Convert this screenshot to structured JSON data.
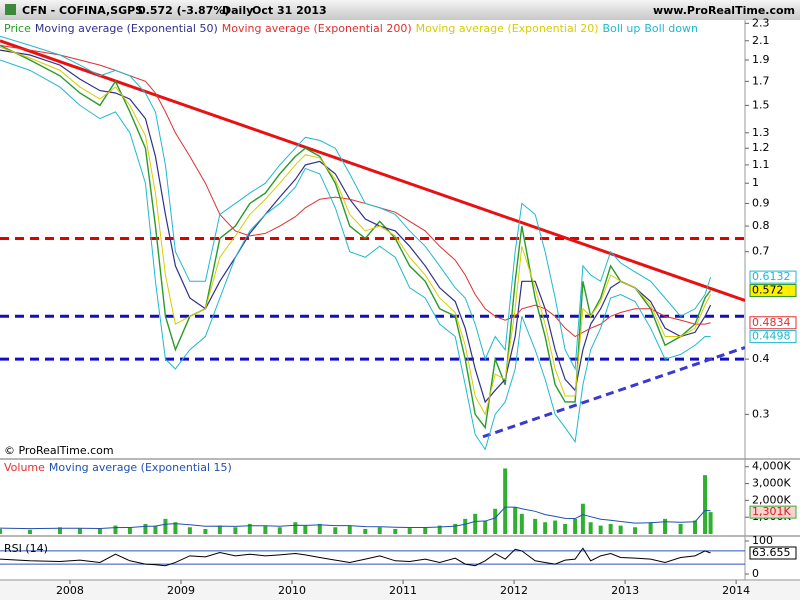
{
  "header": {
    "symbol": "CFN - COFINA,SGPS",
    "quote": "0.572 (-3.87%)",
    "period": "Daily",
    "date": "Oct 31 2013",
    "site": "www.ProRealTime.com"
  },
  "chart_data": [
    {
      "type": "line",
      "log_scale": true,
      "annotation": "© ProRealTime.com",
      "x": [
        2007.37,
        2007.64,
        2007.91,
        2008.09,
        2008.27,
        2008.41,
        2008.54,
        2008.68,
        2008.77,
        2008.86,
        2008.95,
        2009.08,
        2009.22,
        2009.35,
        2009.49,
        2009.62,
        2009.76,
        2009.89,
        2010.03,
        2010.12,
        2010.25,
        2010.39,
        2010.52,
        2010.66,
        2010.79,
        2010.93,
        2011.06,
        2011.2,
        2011.33,
        2011.47,
        2011.56,
        2011.65,
        2011.74,
        2011.83,
        2011.92,
        2012.01,
        2012.07,
        2012.19,
        2012.28,
        2012.37,
        2012.46,
        2012.55,
        2012.62,
        2012.69,
        2012.78,
        2012.87,
        2012.96,
        2013.09,
        2013.23,
        2013.36,
        2013.5,
        2013.63,
        2013.72,
        2013.77
      ],
      "xlim": [
        2007.37,
        2014.08
      ],
      "xticks": [
        2008,
        2009,
        2010,
        2011,
        2012,
        2013,
        2014
      ],
      "ylim": [
        0.239,
        2.34
      ],
      "yticks": [
        2.3,
        2.1,
        1.9,
        1.7,
        1.5,
        1.3,
        1.2,
        1.1,
        1,
        0.9,
        0.8,
        0.7,
        0.4,
        0.3
      ],
      "series": [
        {
          "name": "Price",
          "color": "#2a9a2a",
          "width": 1.4,
          "box": true,
          "box_fill": "#ffee00",
          "box_text": "#000000",
          "values": [
            2.05,
            1.9,
            1.75,
            1.6,
            1.5,
            1.7,
            1.45,
            1.2,
            0.8,
            0.5,
            0.42,
            0.5,
            0.52,
            0.75,
            0.8,
            0.9,
            0.95,
            1.05,
            1.15,
            1.2,
            1.15,
            1.0,
            0.8,
            0.75,
            0.82,
            0.75,
            0.65,
            0.6,
            0.52,
            0.5,
            0.4,
            0.3,
            0.28,
            0.4,
            0.35,
            0.6,
            0.8,
            0.55,
            0.45,
            0.35,
            0.32,
            0.32,
            0.6,
            0.5,
            0.55,
            0.65,
            0.6,
            0.58,
            0.52,
            0.43,
            0.45,
            0.48,
            0.55,
            0.572
          ]
        },
        {
          "name": "Moving average (Exponential 50)",
          "color": "#30308c",
          "width": 1.2,
          "values": [
            2.0,
            1.95,
            1.85,
            1.72,
            1.62,
            1.6,
            1.55,
            1.4,
            1.15,
            0.85,
            0.65,
            0.55,
            0.52,
            0.6,
            0.68,
            0.77,
            0.85,
            0.93,
            1.02,
            1.1,
            1.12,
            1.05,
            0.92,
            0.83,
            0.8,
            0.78,
            0.72,
            0.65,
            0.58,
            0.54,
            0.47,
            0.38,
            0.32,
            0.34,
            0.36,
            0.45,
            0.6,
            0.6,
            0.52,
            0.42,
            0.36,
            0.34,
            0.42,
            0.48,
            0.52,
            0.58,
            0.6,
            0.58,
            0.54,
            0.47,
            0.45,
            0.46,
            0.5,
            0.53
          ]
        },
        {
          "name": "Moving average (Exponential 200)",
          "color": "#e03030",
          "width": 1,
          "box": true,
          "box_fill": "#ffffff",
          "values": [
            2.05,
            2.0,
            1.95,
            1.9,
            1.85,
            1.8,
            1.75,
            1.7,
            1.6,
            1.45,
            1.3,
            1.15,
            1.0,
            0.85,
            0.78,
            0.76,
            0.77,
            0.8,
            0.84,
            0.88,
            0.92,
            0.93,
            0.92,
            0.9,
            0.88,
            0.86,
            0.82,
            0.78,
            0.72,
            0.67,
            0.62,
            0.56,
            0.52,
            0.5,
            0.49,
            0.5,
            0.52,
            0.53,
            0.52,
            0.5,
            0.47,
            0.45,
            0.46,
            0.47,
            0.48,
            0.5,
            0.51,
            0.52,
            0.52,
            0.5,
            0.49,
            0.48,
            0.48,
            0.4834
          ]
        },
        {
          "name": "Moving average (Exponential 20)",
          "color": "#d8cc00",
          "width": 1,
          "values": [
            2.03,
            1.92,
            1.8,
            1.65,
            1.55,
            1.65,
            1.5,
            1.28,
            0.95,
            0.62,
            0.48,
            0.5,
            0.52,
            0.68,
            0.76,
            0.85,
            0.92,
            1.0,
            1.1,
            1.16,
            1.14,
            1.02,
            0.85,
            0.78,
            0.8,
            0.76,
            0.68,
            0.62,
            0.55,
            0.51,
            0.43,
            0.33,
            0.3,
            0.37,
            0.36,
            0.52,
            0.72,
            0.58,
            0.48,
            0.38,
            0.33,
            0.33,
            0.52,
            0.5,
            0.54,
            0.62,
            0.6,
            0.58,
            0.53,
            0.45,
            0.45,
            0.47,
            0.53,
            0.56
          ]
        },
        {
          "name": "Boll up",
          "color": "#20b8d0",
          "width": 1,
          "box": true,
          "box_fill": "#ffffff",
          "values": [
            2.15,
            2.05,
            1.95,
            1.85,
            1.75,
            1.8,
            1.75,
            1.6,
            1.45,
            1.1,
            0.7,
            0.6,
            0.6,
            0.85,
            0.9,
            0.95,
            1.0,
            1.1,
            1.2,
            1.27,
            1.25,
            1.2,
            1.05,
            0.9,
            0.88,
            0.85,
            0.78,
            0.72,
            0.65,
            0.58,
            0.55,
            0.48,
            0.4,
            0.45,
            0.42,
            0.7,
            0.9,
            0.85,
            0.7,
            0.55,
            0.42,
            0.38,
            0.65,
            0.62,
            0.6,
            0.7,
            0.66,
            0.63,
            0.6,
            0.55,
            0.5,
            0.52,
            0.56,
            0.6132
          ]
        },
        {
          "name": "Boll down",
          "color": "#20b8d0",
          "width": 1,
          "box": true,
          "box_fill": "#ffffff",
          "values": [
            1.9,
            1.8,
            1.65,
            1.5,
            1.4,
            1.45,
            1.3,
            1.0,
            0.6,
            0.4,
            0.38,
            0.42,
            0.45,
            0.55,
            0.68,
            0.78,
            0.85,
            0.9,
            0.98,
            1.08,
            1.05,
            0.88,
            0.7,
            0.68,
            0.72,
            0.68,
            0.58,
            0.55,
            0.48,
            0.45,
            0.35,
            0.27,
            0.25,
            0.3,
            0.32,
            0.38,
            0.5,
            0.42,
            0.36,
            0.3,
            0.28,
            0.26,
            0.35,
            0.42,
            0.47,
            0.55,
            0.56,
            0.54,
            0.47,
            0.4,
            0.41,
            0.43,
            0.45,
            0.4498
          ]
        }
      ],
      "levels": [
        {
          "value": 0.75,
          "color": "#e00000",
          "dash": true
        },
        {
          "value": 0.5,
          "color": "#1010c0",
          "dash": true
        },
        {
          "value": 0.4,
          "color": "#1010c0",
          "dash": true
        }
      ],
      "trendlines": [
        {
          "color": "#e81010",
          "dash": false,
          "x": [
            2007.37,
            2014.08
          ],
          "y": [
            2.1,
            0.543
          ]
        },
        {
          "color": "#3a3ad0",
          "dash": true,
          "x": [
            2011.72,
            2014.08
          ],
          "y": [
            0.267,
            0.425
          ]
        }
      ]
    },
    {
      "type": "bar",
      "ylim": [
        0,
        4400
      ],
      "yticks": [
        {
          "value": 4000,
          "label": "4,000K"
        },
        {
          "value": 3000,
          "label": "3,000K"
        },
        {
          "value": 2000,
          "label": "2,000K"
        },
        {
          "value": 1000,
          "label": "1,000K"
        }
      ],
      "series": [
        {
          "name": "Volume",
          "kind": "bar",
          "color": "#30b030",
          "legend_color": "#e03030",
          "box": true,
          "box_fill": "#ffd0d0",
          "box_text": "#d02020",
          "values": [
            300,
            250,
            400,
            350,
            300,
            500,
            400,
            600,
            500,
            900,
            700,
            400,
            300,
            500,
            400,
            600,
            500,
            400,
            700,
            500,
            600,
            400,
            500,
            300,
            400,
            300,
            350,
            400,
            500,
            600,
            900,
            1200,
            800,
            1500,
            3900,
            1600,
            1200,
            900,
            700,
            800,
            600,
            900,
            1800,
            700,
            500,
            600,
            500,
            400,
            700,
            900,
            600,
            800,
            3500,
            1301
          ],
          "value_labels": [
            null,
            null,
            null,
            null,
            null,
            null,
            null,
            null,
            null,
            null,
            null,
            null,
            null,
            null,
            null,
            null,
            null,
            null,
            null,
            null,
            null,
            null,
            null,
            null,
            null,
            null,
            null,
            null,
            null,
            null,
            null,
            null,
            null,
            null,
            null,
            null,
            null,
            null,
            null,
            null,
            null,
            null,
            null,
            null,
            null,
            null,
            null,
            null,
            null,
            null,
            null,
            null,
            null,
            "1,301K"
          ]
        },
        {
          "name": "Moving average (Exponential 15)",
          "kind": "line",
          "color": "#2050b0",
          "width": 1,
          "values": [
            350,
            320,
            340,
            340,
            330,
            380,
            390,
            450,
            470,
            580,
            620,
            550,
            460,
            470,
            450,
            490,
            490,
            460,
            520,
            510,
            540,
            500,
            500,
            440,
            430,
            400,
            385,
            390,
            420,
            470,
            580,
            750,
            770,
            950,
            1600,
            1600,
            1500,
            1350,
            1150,
            1050,
            930,
            920,
            1150,
            1030,
            880,
            820,
            740,
            650,
            670,
            730,
            700,
            730,
            1400,
            1380
          ]
        }
      ]
    },
    {
      "type": "line",
      "title": "RSI (14)",
      "ylim": [
        0,
        100
      ],
      "yticks": [
        100,
        0
      ],
      "levels": [
        {
          "value": 70,
          "color": "#3050c0",
          "dash": false
        },
        {
          "value": 30,
          "color": "#3050c0",
          "dash": false
        }
      ],
      "series": [
        {
          "color": "#000000",
          "width": 1,
          "box": true,
          "box_fill": "#ffffff",
          "box_text": "#000000",
          "values": [
            45,
            40,
            38,
            42,
            35,
            60,
            40,
            30,
            28,
            25,
            35,
            55,
            52,
            65,
            55,
            60,
            55,
            58,
            62,
            58,
            50,
            42,
            35,
            45,
            55,
            40,
            38,
            45,
            35,
            48,
            30,
            25,
            40,
            62,
            45,
            75,
            70,
            40,
            35,
            30,
            42,
            45,
            78,
            40,
            55,
            62,
            50,
            48,
            45,
            35,
            50,
            55,
            70,
            63.655
          ]
        }
      ]
    }
  ]
}
